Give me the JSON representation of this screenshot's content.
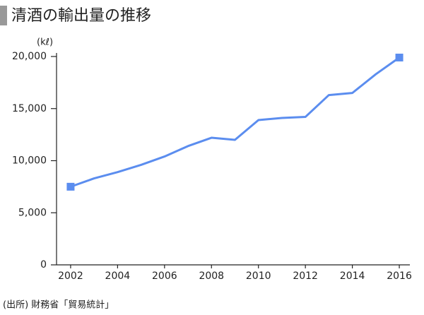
{
  "chart_data": {
    "type": "line",
    "title": "清酒の輸出量の推移",
    "unit_label": "(kℓ)",
    "source": "(出所) 財務省「貿易統計」",
    "x": [
      2002,
      2003,
      2004,
      2005,
      2006,
      2007,
      2008,
      2009,
      2010,
      2011,
      2012,
      2013,
      2014,
      2015,
      2016
    ],
    "values": [
      7500,
      8300,
      8900,
      9600,
      10400,
      11400,
      12200,
      12000,
      13900,
      14100,
      14200,
      16300,
      16500,
      18300,
      19900
    ],
    "color": "#5b8def",
    "xlim": [
      2001.4,
      2016.45
    ],
    "xticks": [
      2002,
      2004,
      2006,
      2008,
      2010,
      2012,
      2014,
      2016
    ],
    "ylim": [
      0,
      20000
    ],
    "yticks": [
      0,
      {
        "value": 5000,
        "label": "5,000"
      },
      {
        "value": 10000,
        "label": "10,000"
      },
      {
        "value": 15000,
        "label": "15,000"
      },
      {
        "value": 20000,
        "label": "20,000"
      }
    ],
    "grid": false
  }
}
